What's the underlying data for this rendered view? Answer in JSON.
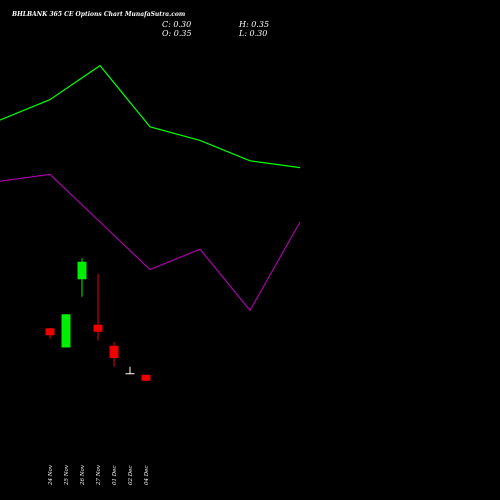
{
  "header": {
    "title": "BHLBANK 365 CE Options  Chart MunafaSutra.com",
    "close_label": "C: 0.30",
    "high_label": "H: 0.35",
    "open_label": "O: 0.35",
    "low_label": "L: 0.30"
  },
  "colors": {
    "background": "#000000",
    "bull": "#00ee00",
    "bear": "#ee0000",
    "upper_line": "#00ff00",
    "lower_line": "#aa00aa",
    "text": "#ffffff"
  },
  "chart_data": [
    {
      "type": "line",
      "x": [
        1,
        2,
        3,
        4,
        5,
        6,
        7,
        8
      ],
      "series": [
        {
          "values": [
            0.5,
            0.5,
            0.56,
            0.66,
            0.48,
            0.44,
            0.38,
            0.36
          ]
        },
        {
          "values": [
            0.32,
            0.32,
            0.34,
            0.2,
            0.06,
            0.12,
            -0.06,
            0.2
          ]
        }
      ]
    },
    {
      "type": "candlestick",
      "categories": [
        "24 Nov",
        "25 Nov",
        "26 Nov",
        "27 Nov",
        "01 Dec",
        "02 Dec",
        "04 Dec"
      ],
      "open": [
        3.05,
        2.5,
        4.45,
        3.15,
        2.55,
        1.75,
        1.72
      ],
      "high": [
        3.05,
        3.45,
        5.05,
        4.6,
        2.65,
        1.95,
        1.72
      ],
      "low": [
        2.75,
        2.5,
        3.95,
        2.7,
        1.95,
        1.75,
        1.55
      ],
      "close": [
        2.85,
        3.45,
        4.95,
        2.95,
        2.2,
        1.75,
        1.55
      ]
    }
  ]
}
